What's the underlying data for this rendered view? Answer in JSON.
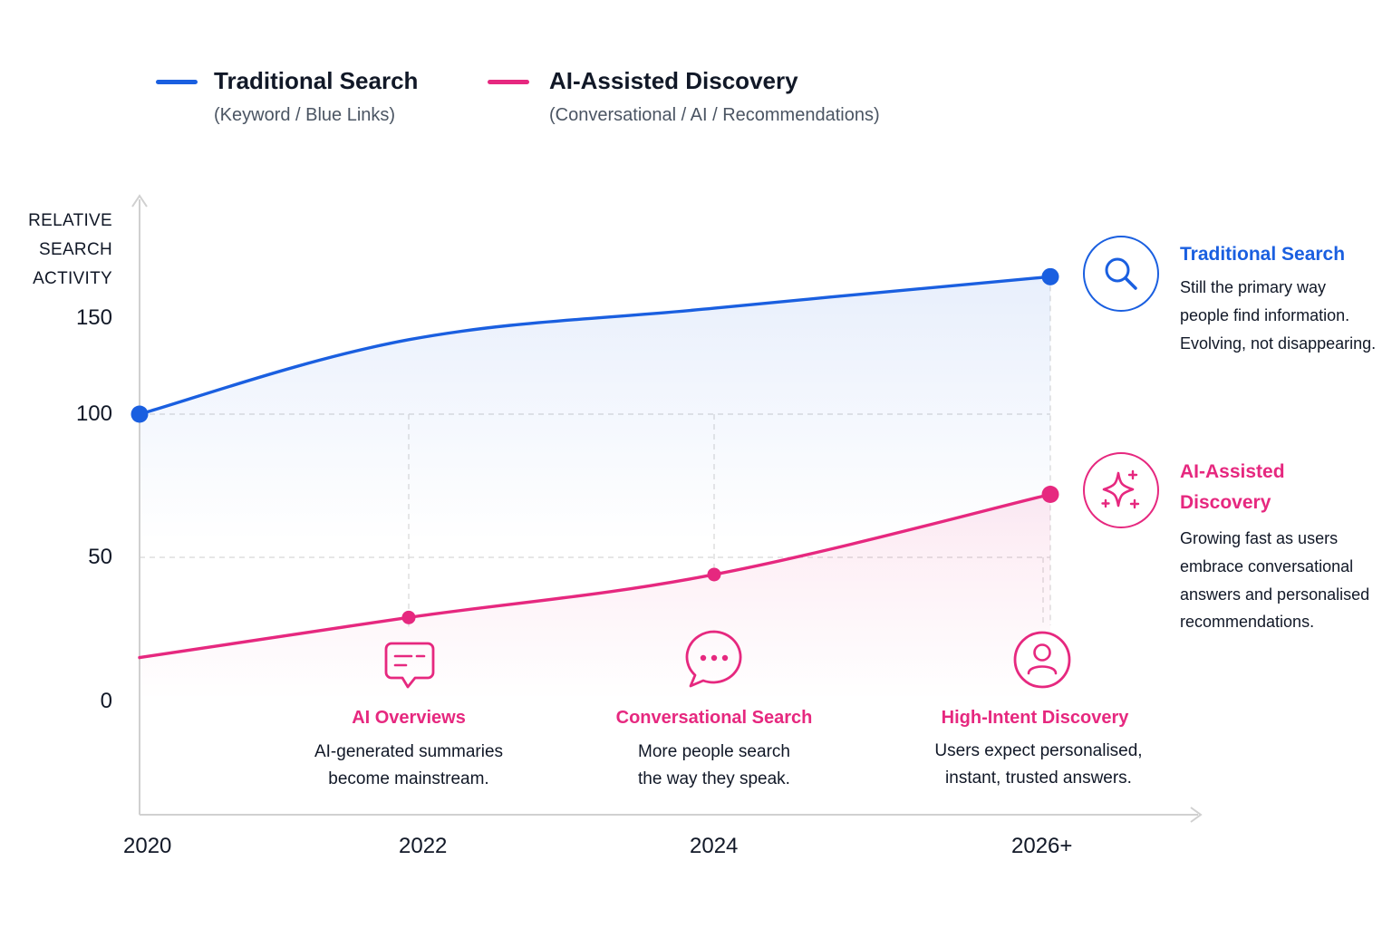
{
  "colors": {
    "traditional": "#1a5fe0",
    "ai": "#e6287f",
    "grid": "#d7d7d7",
    "axis": "#d0d0d0"
  },
  "legend": {
    "traditional": {
      "title": "Traditional Search",
      "subtitle": "(Keyword / Blue Links)"
    },
    "ai": {
      "title": "AI-Assisted Discovery",
      "subtitle": "(Conversational / AI / Recommendations)"
    }
  },
  "chart_data": {
    "type": "line",
    "x": [
      "2020",
      "2022",
      "2024",
      "2026+"
    ],
    "ylabel_lines": [
      "RELATIVE",
      "SEARCH",
      "ACTIVITY"
    ],
    "yticks": [
      "150",
      "100",
      "50",
      "0"
    ],
    "ylim": [
      0,
      150
    ],
    "grid": "dashed at 50 and 100",
    "series": [
      {
        "name": "Traditional Search",
        "x": [
          2020,
          2022,
          2024,
          2026
        ],
        "values": [
          100,
          126,
          137,
          148
        ]
      },
      {
        "name": "AI-Assisted Discovery",
        "x": [
          2020,
          2022,
          2024,
          2026
        ],
        "values": [
          15,
          29,
          44,
          72
        ]
      }
    ]
  },
  "side_notes": {
    "traditional": {
      "icon": "search-icon",
      "title": "Traditional Search",
      "lines": [
        "Still the primary way",
        "people find information.",
        "Evolving, not disappearing."
      ]
    },
    "ai": {
      "icon": "sparkle-icon",
      "title_lines": [
        "AI-Assisted",
        "Discovery"
      ],
      "lines": [
        "Growing fast as users",
        "embrace conversational",
        "answers and personalised",
        "recommendations."
      ]
    }
  },
  "milestones": [
    {
      "icon": "chat-summary-icon",
      "title": "AI Overviews",
      "lines": [
        "AI-generated summaries",
        "become mainstream."
      ]
    },
    {
      "icon": "speech-bubble-icon",
      "title": "Conversational Search",
      "lines": [
        "More people search",
        "the way they speak."
      ]
    },
    {
      "icon": "user-icon",
      "title": "High-Intent Discovery",
      "lines": [
        "Users expect personalised,",
        "instant, trusted answers."
      ]
    }
  ]
}
